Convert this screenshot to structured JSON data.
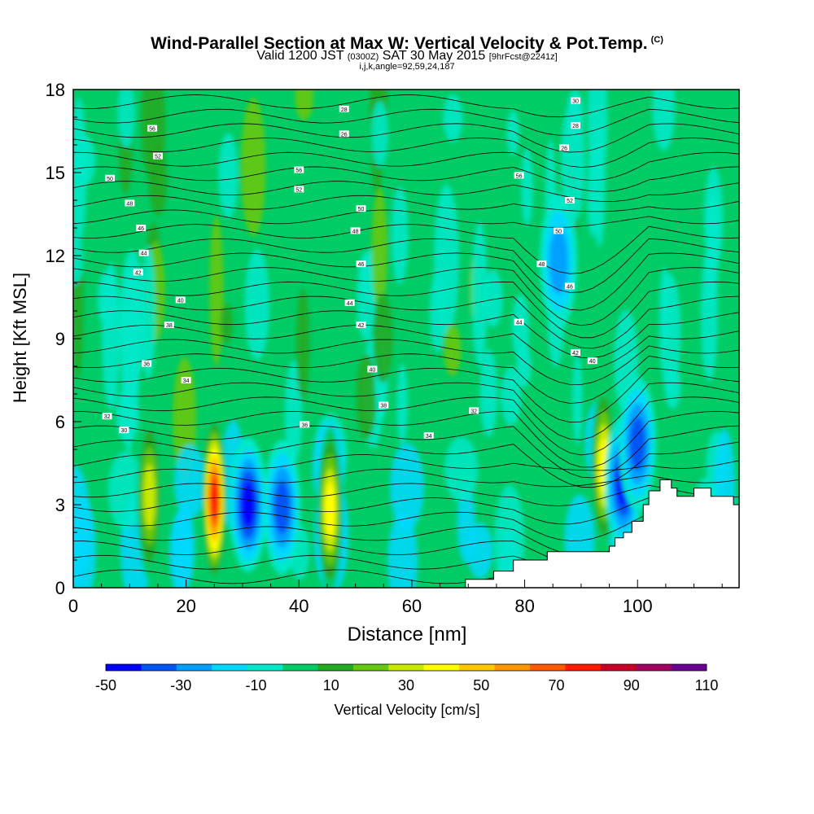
{
  "title": {
    "main": "Wind-Parallel Section at Max W: Vertical Velocity & Pot.Temp.",
    "tag": "(C)",
    "valid_prefix": "Valid 1200 JST",
    "valid_utc": "(0300Z)",
    "valid_date": "SAT 30 May 2015",
    "forecast": "[9hrFcst@2241z]",
    "indices": "i,j,k,angle=92,59,24,187"
  },
  "chart_data": {
    "type": "heatmap",
    "xlabel": "Distance [nm]",
    "ylabel": "Height [Kft MSL]",
    "xlim": [
      0,
      118
    ],
    "ylim": [
      0,
      18
    ],
    "x_ticks": [
      0,
      20,
      40,
      60,
      80,
      100
    ],
    "y_ticks": [
      0,
      3,
      6,
      9,
      12,
      15,
      18
    ],
    "colorbar": {
      "label": "Vertical Velocity [cm/s]",
      "tick_labels": [
        "-50",
        "-30",
        "-10",
        "10",
        "30",
        "50",
        "70",
        "90",
        "110"
      ],
      "levels": [
        -50,
        -40,
        -30,
        -20,
        -10,
        0,
        10,
        20,
        30,
        40,
        50,
        60,
        70,
        80,
        90,
        100,
        110
      ],
      "colors": [
        "#0000ff",
        "#0055f5",
        "#00a0ff",
        "#00d8ff",
        "#00e8c8",
        "#00cc66",
        "#22aa22",
        "#66c810",
        "#c8e800",
        "#ffff00",
        "#ffc800",
        "#ff9600",
        "#ff5a00",
        "#ff1a00",
        "#c80028",
        "#a00060",
        "#6a0090"
      ]
    },
    "vertical_velocity_peaks": [
      {
        "x": 25,
        "y": 3.2,
        "value": 90
      },
      {
        "x": 13.5,
        "y": 3.3,
        "value": 40
      },
      {
        "x": 45.5,
        "y": 2.8,
        "value": 45
      },
      {
        "x": 94,
        "y": 4.4,
        "value": 45
      },
      {
        "x": 31,
        "y": 3.0,
        "value": -50
      },
      {
        "x": 37,
        "y": 2.9,
        "value": -35
      },
      {
        "x": 97.5,
        "y": 3.8,
        "value": -50
      },
      {
        "x": 100,
        "y": 5.2,
        "value": -40
      },
      {
        "x": 86,
        "y": 11.8,
        "value": -25
      }
    ],
    "potential_temperature_labels": [
      "56",
      "52",
      "50",
      "48",
      "46",
      "44",
      "42",
      "40",
      "38",
      "36",
      "34",
      "32",
      "30",
      "28",
      "26"
    ],
    "terrain": {
      "x": [
        67.5,
        69.5,
        74.5,
        78,
        84,
        88,
        91,
        95,
        96,
        97.5,
        99,
        101,
        102,
        104,
        106,
        107,
        108,
        110,
        113,
        117,
        118
      ],
      "y": [
        0,
        0.3,
        0.6,
        1.0,
        1.3,
        1.3,
        1.3,
        1.5,
        1.8,
        2.0,
        2.4,
        3.0,
        3.5,
        3.9,
        3.6,
        3.3,
        3.3,
        3.6,
        3.3,
        3.0,
        3.0
      ]
    }
  }
}
